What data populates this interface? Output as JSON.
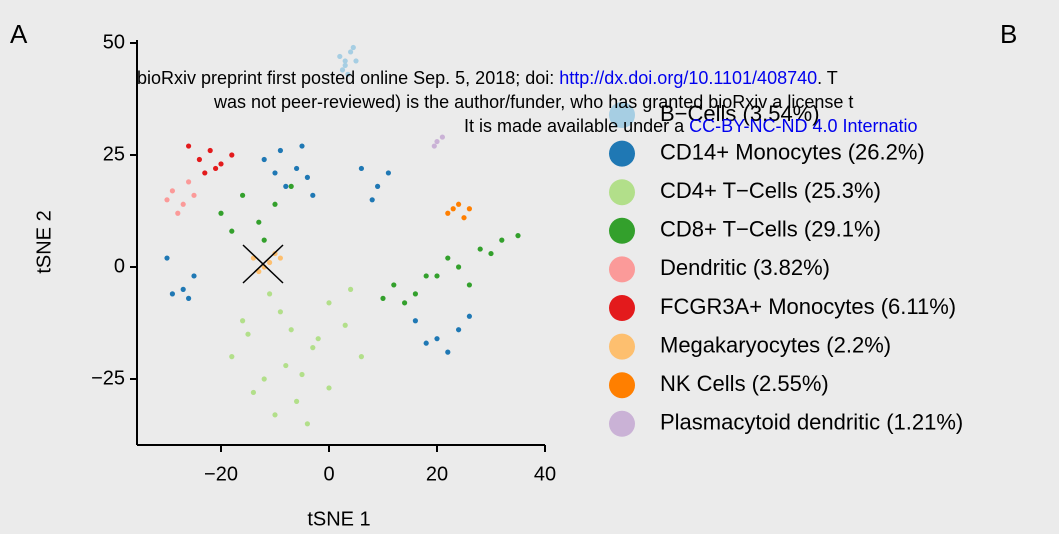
{
  "chart_data": {
    "type": "scatter",
    "panel_labels": [
      "A",
      "B"
    ],
    "watermark": {
      "line1": "bioRxiv preprint first posted online Sep. 5, 2018; doi: ",
      "line1_link": "http://dx.doi.org/10.1101/408740",
      "line1_end": ". T",
      "line2": "was not peer-reviewed) is the author/funder, who has granted bioRxiv a license t",
      "line3": "It is made available under a ",
      "line3_link": "CC-BY-NC-ND 4.0 Internatio"
    },
    "xlabel": "tSNE 1",
    "ylabel": "tSNE 2",
    "xlim": [
      -35.5,
      40
    ],
    "ylim": [
      -40,
      50
    ],
    "xticks": [
      {
        "value": -20,
        "label": "−20"
      },
      0,
      20,
      40
    ],
    "yticks": [
      50,
      25,
      0,
      {
        "value": -25,
        "label": "−25"
      }
    ],
    "series": [
      {
        "name": "B−Cells (3.54%)",
        "color": "#a6cee3",
        "x": [
          2,
          3,
          4,
          3.5,
          5,
          2.5,
          4.5,
          3
        ],
        "y": [
          47,
          45,
          48,
          43,
          46,
          44,
          49,
          46
        ]
      },
      {
        "name": "CD14+ Monocytes (26.2%)",
        "color": "#1f78b4",
        "x": [
          -12,
          -9,
          -6,
          -4,
          -8,
          -3,
          -10,
          -5,
          6,
          9,
          11,
          8,
          -30,
          -27,
          -25,
          -29,
          -26,
          16,
          20,
          24,
          22,
          18,
          26
        ],
        "y": [
          24,
          26,
          22,
          20,
          18,
          16,
          21,
          27,
          22,
          18,
          21,
          15,
          2,
          -5,
          -2,
          -6,
          -7,
          -12,
          -16,
          -14,
          -19,
          -17,
          -11
        ]
      },
      {
        "name": "CD4+ T−Cells (25.3%)",
        "color": "#b2df8a",
        "x": [
          -18,
          -15,
          -12,
          -9,
          -6,
          -3,
          0,
          3,
          6,
          -14,
          -10,
          -5,
          0,
          4,
          -16,
          -8,
          -2,
          -11,
          -7,
          -4
        ],
        "y": [
          -20,
          -15,
          -25,
          -10,
          -30,
          -18,
          -8,
          -13,
          -20,
          -28,
          -33,
          -24,
          -27,
          -5,
          -12,
          -22,
          -16,
          -6,
          -14,
          -35
        ]
      },
      {
        "name": "CD8+ T−Cells (29.1%)",
        "color": "#33a02c",
        "x": [
          -20,
          -16,
          -13,
          -10,
          -7,
          -18,
          -12,
          12,
          16,
          20,
          24,
          28,
          32,
          35,
          14,
          22,
          30,
          26,
          18,
          10
        ],
        "y": [
          12,
          16,
          10,
          14,
          18,
          8,
          6,
          -4,
          -6,
          -2,
          0,
          4,
          6,
          7,
          -8,
          2,
          3,
          -4,
          -2,
          -7
        ]
      },
      {
        "name": "Dendritic (3.82%)",
        "color": "#fb9a99",
        "x": [
          -29,
          -27,
          -25,
          -28,
          -26,
          -30
        ],
        "y": [
          17,
          14,
          16,
          12,
          19,
          15
        ]
      },
      {
        "name": "FCGR3A+ Monocytes (6.11%)",
        "color": "#e31a1c",
        "x": [
          -24,
          -22,
          -20,
          -18,
          -23,
          -21,
          -26
        ],
        "y": [
          24,
          26,
          23,
          25,
          21,
          22,
          27
        ]
      },
      {
        "name": "Megakaryocytes (2.2%)",
        "color": "#fdbf6f",
        "x": [
          -14,
          -12,
          -10,
          -13,
          -11,
          -9
        ],
        "y": [
          2,
          0,
          3,
          -1,
          1,
          2
        ]
      },
      {
        "name": "NK Cells (2.55%)",
        "color": "#ff7f00",
        "x": [
          22,
          24,
          26,
          25,
          23
        ],
        "y": [
          12,
          14,
          13,
          11,
          13
        ]
      },
      {
        "name": "Plasmacytoid dendritic (1.21%)",
        "color": "#cab2d6",
        "x": [
          20,
          21,
          19.5
        ],
        "y": [
          28,
          29,
          27
        ]
      }
    ]
  }
}
